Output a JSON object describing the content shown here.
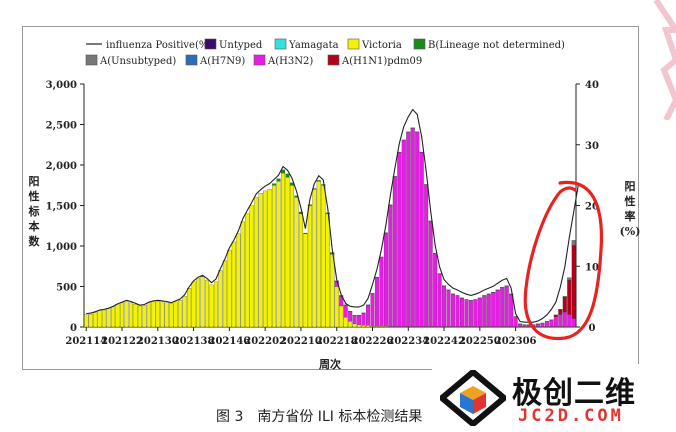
{
  "chart_data": {
    "type": "bar",
    "stacked": true,
    "x_tick_labels": [
      "202114",
      "202122",
      "202130",
      "202138",
      "202146",
      "202202",
      "202210",
      "202218",
      "202226",
      "202234",
      "202242",
      "202250",
      "202306"
    ],
    "xlabel": "周次",
    "ylabel": "阳性标本数",
    "y2label": "阳性率(%)",
    "ylim": [
      0,
      3000
    ],
    "y_ticks": [
      "0",
      "500",
      "1,000",
      "1,500",
      "2,000",
      "2,500",
      "3,000"
    ],
    "y2lim": [
      0,
      40
    ],
    "y2_ticks": [
      "0",
      "10",
      "20",
      "30",
      "40"
    ],
    "legend_position": "top",
    "legend": [
      {
        "name": "influenza Positive(%)",
        "kind": "line",
        "color": "#222222"
      },
      {
        "name": "Untyped",
        "kind": "box",
        "color": "#3a0a6e"
      },
      {
        "name": "Yamagata",
        "kind": "box",
        "color": "#33e0e0"
      },
      {
        "name": "Victoria",
        "kind": "box",
        "color": "#f2f205"
      },
      {
        "name": "B(Lineage not determined)",
        "kind": "box",
        "color": "#1a8a1a"
      },
      {
        "name": "A(Unsubtyped)",
        "kind": "box",
        "color": "#777777"
      },
      {
        "name": "A(H7N9)",
        "kind": "box",
        "color": "#2a6fb8"
      },
      {
        "name": "A(H3N2)",
        "kind": "box",
        "color": "#e51de5"
      },
      {
        "name": "A(H1N1)pdm09",
        "kind": "box",
        "color": "#b3001b"
      }
    ],
    "series": [
      {
        "name": "Victoria",
        "color": "#f2f205",
        "values": [
          150,
          160,
          180,
          200,
          210,
          230,
          250,
          280,
          300,
          320,
          300,
          280,
          260,
          270,
          300,
          310,
          320,
          310,
          300,
          290,
          310,
          330,
          380,
          480,
          560,
          600,
          620,
          580,
          520,
          560,
          700,
          820,
          950,
          1050,
          1150,
          1300,
          1400,
          1500,
          1600,
          1650,
          1680,
          1700,
          1750,
          1800,
          1900,
          1850,
          1750,
          1600,
          1400,
          1150,
          1500,
          1700,
          1800,
          1750,
          1400,
          900,
          500,
          260,
          120,
          70,
          40,
          30,
          20,
          20,
          10,
          10,
          10,
          10,
          5,
          5,
          5,
          5,
          5,
          5,
          5,
          5,
          5,
          5,
          5,
          5,
          5,
          5,
          5,
          5,
          5,
          5,
          5,
          5,
          5,
          5,
          5,
          5,
          5,
          5,
          5,
          5,
          5,
          5,
          5,
          5,
          5,
          5,
          5,
          5,
          5,
          5,
          5,
          5,
          5,
          5
        ]
      },
      {
        "name": "A(H3N2)",
        "color": "#e51de5",
        "values": [
          0,
          0,
          0,
          0,
          0,
          0,
          0,
          0,
          0,
          0,
          0,
          0,
          0,
          0,
          0,
          0,
          0,
          0,
          0,
          0,
          0,
          0,
          0,
          0,
          0,
          0,
          0,
          0,
          0,
          0,
          0,
          0,
          0,
          0,
          0,
          0,
          0,
          0,
          0,
          0,
          0,
          0,
          0,
          0,
          0,
          0,
          0,
          0,
          0,
          0,
          0,
          0,
          0,
          0,
          0,
          10,
          60,
          120,
          150,
          120,
          100,
          110,
          150,
          250,
          400,
          600,
          850,
          1150,
          1500,
          1850,
          2150,
          2300,
          2400,
          2450,
          2400,
          2150,
          1750,
          1300,
          900,
          650,
          500,
          450,
          400,
          380,
          350,
          330,
          320,
          330,
          350,
          380,
          400,
          420,
          450,
          480,
          500,
          400,
          120,
          30,
          20,
          20,
          20,
          30,
          40,
          60,
          80,
          120,
          150,
          180,
          150,
          100
        ]
      },
      {
        "name": "A(H1N1)pdm09",
        "color": "#b3001b",
        "values": [
          0,
          0,
          0,
          0,
          0,
          0,
          0,
          0,
          0,
          0,
          0,
          0,
          0,
          0,
          0,
          0,
          0,
          0,
          0,
          0,
          0,
          0,
          0,
          0,
          0,
          0,
          0,
          0,
          0,
          0,
          0,
          0,
          0,
          0,
          0,
          0,
          0,
          0,
          0,
          0,
          0,
          0,
          0,
          0,
          0,
          0,
          0,
          0,
          0,
          0,
          0,
          0,
          0,
          0,
          0,
          0,
          0,
          0,
          0,
          0,
          0,
          0,
          0,
          0,
          0,
          0,
          0,
          0,
          0,
          0,
          0,
          0,
          0,
          0,
          0,
          0,
          0,
          0,
          0,
          0,
          0,
          0,
          0,
          0,
          0,
          0,
          0,
          0,
          0,
          0,
          0,
          0,
          0,
          0,
          0,
          0,
          0,
          0,
          0,
          0,
          0,
          0,
          0,
          0,
          0,
          20,
          60,
          180,
          420,
          900,
          600
        ]
      },
      {
        "name": "B(Lineage not determined)",
        "color": "#1a8a1a",
        "values": [
          0,
          0,
          0,
          0,
          0,
          0,
          0,
          0,
          0,
          0,
          0,
          0,
          0,
          0,
          0,
          0,
          0,
          0,
          0,
          0,
          0,
          0,
          0,
          0,
          0,
          0,
          0,
          0,
          0,
          0,
          0,
          0,
          0,
          0,
          0,
          0,
          0,
          0,
          0,
          0,
          0,
          0,
          20,
          30,
          40,
          40,
          30,
          20,
          20,
          10,
          10,
          10,
          10,
          10,
          10,
          10,
          10,
          10,
          5,
          5,
          5,
          5,
          5,
          5,
          5,
          5,
          5,
          5,
          5,
          5,
          5,
          5,
          5,
          5,
          5,
          5,
          5,
          5,
          5,
          5,
          5,
          5,
          5,
          5,
          5,
          5,
          5,
          5,
          5,
          5,
          5,
          5,
          5,
          5,
          5,
          5,
          5,
          5,
          5,
          5,
          5,
          5,
          5,
          5,
          5,
          5,
          5,
          5,
          5,
          5,
          5,
          5
        ]
      },
      {
        "name": "A(Unsubtyped)",
        "color": "#777777",
        "values": [
          0,
          0,
          0,
          0,
          0,
          0,
          0,
          0,
          0,
          0,
          0,
          0,
          0,
          0,
          0,
          0,
          0,
          0,
          0,
          0,
          0,
          0,
          0,
          0,
          0,
          0,
          0,
          0,
          0,
          0,
          0,
          0,
          0,
          0,
          0,
          0,
          0,
          0,
          0,
          0,
          0,
          0,
          0,
          0,
          0,
          0,
          0,
          0,
          0,
          0,
          0,
          0,
          0,
          0,
          0,
          0,
          0,
          0,
          0,
          0,
          0,
          0,
          0,
          0,
          0,
          0,
          0,
          0,
          0,
          0,
          0,
          0,
          0,
          0,
          0,
          0,
          0,
          0,
          0,
          0,
          0,
          0,
          0,
          0,
          0,
          0,
          0,
          0,
          0,
          0,
          0,
          0,
          0,
          0,
          0,
          0,
          0,
          0,
          0,
          0,
          0,
          0,
          0,
          0,
          0,
          0,
          0,
          10,
          30,
          60,
          40
        ]
      }
    ],
    "positive_rate": [
      2.2,
      2.3,
      2.5,
      2.8,
      2.9,
      3.1,
      3.4,
      3.8,
      4.1,
      4.4,
      4.2,
      3.9,
      3.6,
      3.7,
      4.1,
      4.3,
      4.4,
      4.3,
      4.2,
      4.0,
      4.3,
      4.6,
      5.3,
      6.6,
      7.6,
      8.2,
      8.5,
      8.0,
      7.3,
      7.9,
      9.6,
      11.2,
      13.0,
      14.3,
      15.8,
      17.8,
      19.2,
      20.5,
      21.9,
      22.6,
      23.2,
      23.6,
      24.3,
      25.0,
      26.4,
      25.8,
      24.5,
      22.4,
      19.6,
      16.2,
      21.0,
      23.6,
      24.9,
      24.2,
      19.5,
      12.8,
      7.8,
      5.3,
      3.9,
      3.4,
      3.3,
      3.3,
      3.6,
      4.7,
      7.0,
      9.5,
      12.8,
      16.8,
      21.7,
      26.1,
      30.2,
      33.0,
      34.6,
      35.8,
      35.0,
      31.3,
      25.7,
      19.1,
      13.5,
      9.9,
      7.8,
      7.0,
      6.4,
      6.1,
      5.7,
      5.4,
      5.2,
      5.4,
      5.7,
      6.1,
      6.4,
      6.7,
      7.2,
      7.7,
      8.0,
      6.4,
      2.2,
      0.9,
      0.8,
      0.8,
      0.8,
      1.0,
      1.4,
      2.0,
      2.9,
      4.1,
      6.6,
      9.9,
      14.7,
      19.0,
      23.3
    ]
  },
  "caption": {
    "figure_number": "图 3",
    "text": "南方省份 ILI 标本检测结果"
  },
  "watermark": {
    "name": "极创二维",
    "site": "JC2D.COM"
  },
  "colors": {
    "annotation_circle": "#e8231f",
    "frame": "#9a9a9a"
  }
}
